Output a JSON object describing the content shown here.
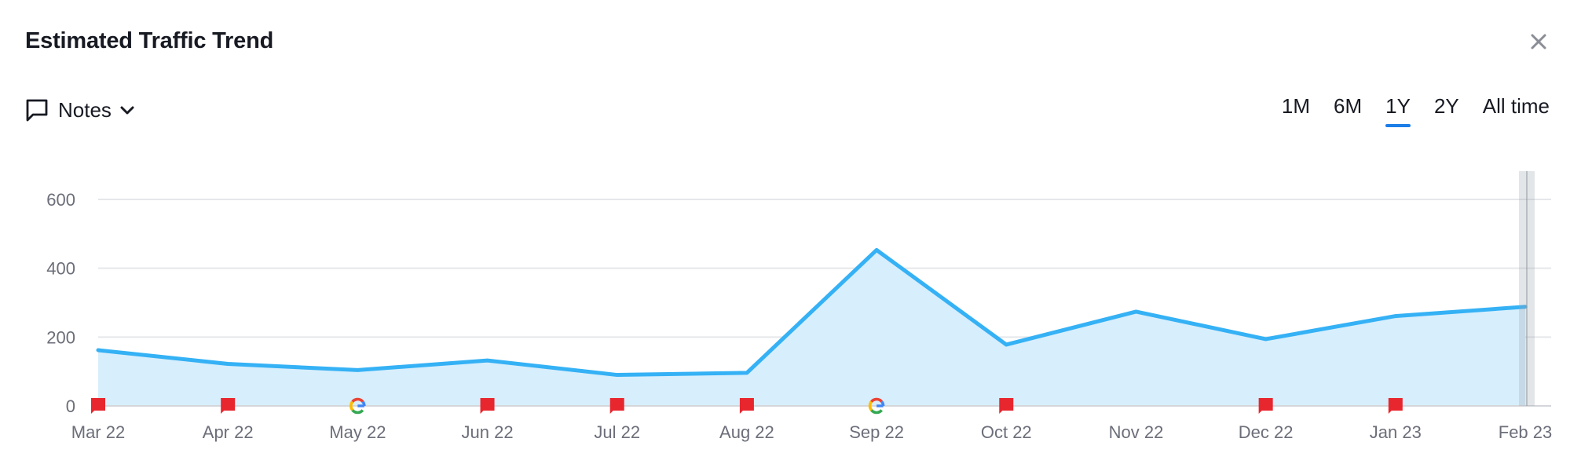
{
  "header": {
    "title": "Estimated Traffic Trend",
    "close_icon": "close-icon"
  },
  "notes": {
    "label": "Notes",
    "icon": "comment-icon",
    "chevron_icon": "chevron-down-icon"
  },
  "periods": [
    {
      "label": "1M",
      "active": false
    },
    {
      "label": "6M",
      "active": false
    },
    {
      "label": "1Y",
      "active": true
    },
    {
      "label": "2Y",
      "active": false
    },
    {
      "label": "All time",
      "active": false
    }
  ],
  "colors": {
    "line": "#35b1f5",
    "area": "#d7eefc",
    "accent": "#1b7de8",
    "flag": "#e8262e",
    "grid": "#e5e7ea"
  },
  "chart_data": {
    "type": "area",
    "categories": [
      "Mar 22",
      "Apr 22",
      "May 22",
      "Jun 22",
      "Jul 22",
      "Aug 22",
      "Sep 22",
      "Oct 22",
      "Nov 22",
      "Dec 22",
      "Jan 23",
      "Feb 23"
    ],
    "series": [
      {
        "values": [
          162,
          122,
          104,
          132,
          90,
          96,
          453,
          178,
          274,
          194,
          261,
          288
        ]
      }
    ],
    "y_ticks": [
      0,
      200,
      400,
      600
    ],
    "ylim": [
      0,
      600
    ],
    "grid": true,
    "markers": [
      {
        "category": "Mar 22",
        "kind": "note-flag"
      },
      {
        "category": "Apr 22",
        "kind": "note-flag"
      },
      {
        "category": "May 22",
        "kind": "google-update"
      },
      {
        "category": "Jun 22",
        "kind": "note-flag"
      },
      {
        "category": "Jul 22",
        "kind": "note-flag"
      },
      {
        "category": "Aug 22",
        "kind": "note-flag"
      },
      {
        "category": "Sep 22",
        "kind": "google-update"
      },
      {
        "category": "Oct 22",
        "kind": "note-flag"
      },
      {
        "category": "Dec 22",
        "kind": "note-flag"
      },
      {
        "category": "Jan 23",
        "kind": "note-flag"
      }
    ],
    "highlight_category": "Feb 23"
  }
}
